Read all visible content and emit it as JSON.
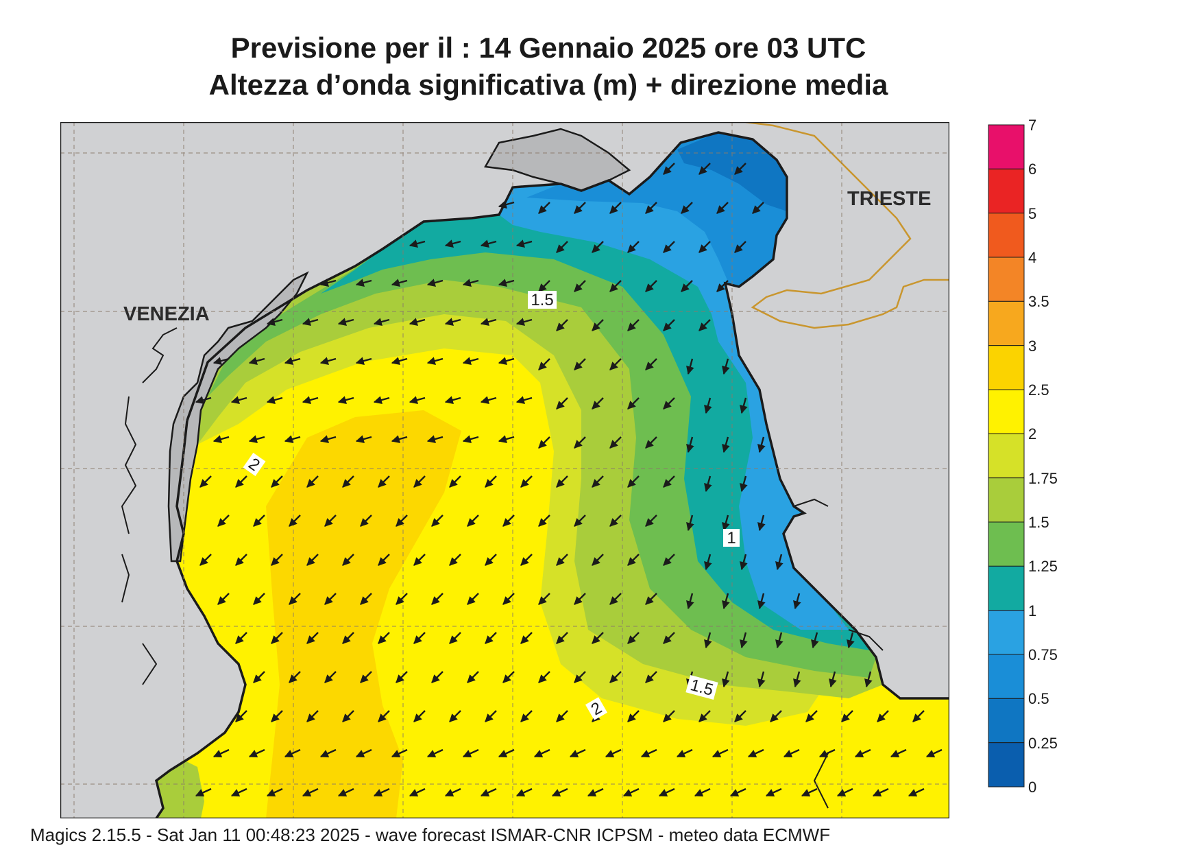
{
  "header": {
    "line1": "Previsione per il  :  14  Gennaio  2025   ore 03 UTC",
    "line2": "Altezza d’onda significativa (m) + direzione media"
  },
  "cities": {
    "venezia": "VENEZIA",
    "trieste": "TRIESTE"
  },
  "contour_labels": {
    "upper_15": "1.5",
    "lower_15": "1.5",
    "left_2": "2",
    "lower_2": "2",
    "east_1": "1"
  },
  "legend": {
    "ticks": [
      "7",
      "6",
      "5",
      "4",
      "3.5",
      "3",
      "2.5",
      "2",
      "1.75",
      "1.5",
      "1.25",
      "1",
      "0.75",
      "0.5",
      "0.25",
      "0"
    ],
    "colors": [
      "#e8106a",
      "#ea2424",
      "#f05a1e",
      "#f38526",
      "#f7a81e",
      "#fbd300",
      "#fff200",
      "#d6e128",
      "#a9cd3b",
      "#6ebe50",
      "#12aaa1",
      "#2aa2e2",
      "#1a8ed7",
      "#0f76c2",
      "#0a5eae"
    ]
  },
  "colors": {
    "land": "#d0d1d3",
    "coast": "#1b1b1b",
    "border": "#c9962e"
  },
  "arrow_direction": "south-west",
  "footer": "Magics 2.15.5 - Sat Jan 11 00:48:23 2025 - wave forecast  ISMAR-CNR  ICPSM - meteo data    ECMWF"
}
